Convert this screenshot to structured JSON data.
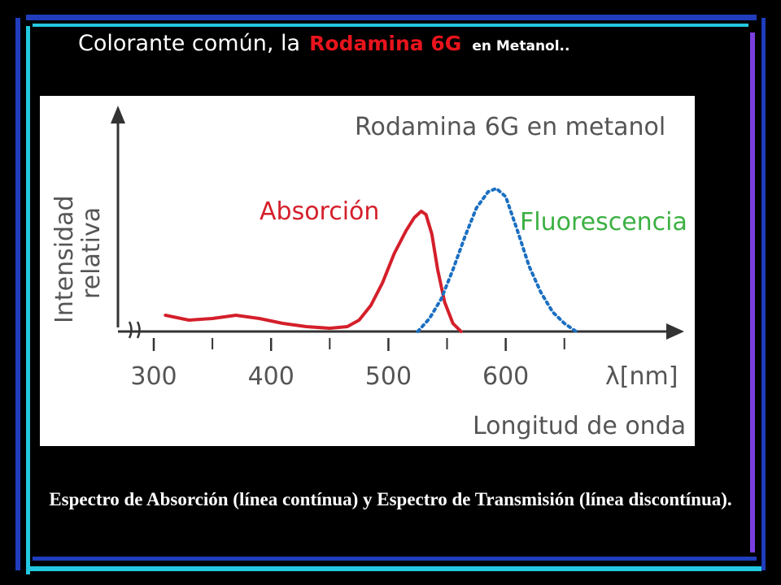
{
  "slide": {
    "title_part1": "Colorante común, la",
    "title_part2": "Rodamina 6G",
    "title_part3": "en Metanol..",
    "caption": "Espectro de Absorción (línea contínua) y Espectro de Transmisión  (línea discontínua).",
    "colors": {
      "background": "#000000",
      "title_accent": "#e8141c",
      "frame_blue": "#1f3dbd",
      "frame_purple": "#7a3ee0",
      "frame_cyan": "#22c8e0"
    }
  },
  "chart_data": {
    "type": "line",
    "title": "Rodamina 6G en metanol",
    "xlabel": "Longitud de onda",
    "xunit": "λ[nm]",
    "ylabel": [
      "Intensidad",
      "relativa"
    ],
    "xlim": [
      300,
      680
    ],
    "ylim": [
      0,
      1.0
    ],
    "xticks": [
      300,
      400,
      500,
      600
    ],
    "xtick_labels": [
      "300",
      "400",
      "500",
      "600"
    ],
    "grid": false,
    "series": [
      {
        "name": "Absorción",
        "color": "#d41f2a",
        "style": "solid",
        "x": [
          310,
          330,
          350,
          370,
          390,
          410,
          430,
          450,
          465,
          475,
          485,
          495,
          505,
          515,
          522,
          528,
          532,
          537,
          542,
          548,
          555,
          562
        ],
        "y": [
          0.1,
          0.07,
          0.08,
          0.1,
          0.08,
          0.05,
          0.03,
          0.02,
          0.03,
          0.07,
          0.16,
          0.3,
          0.48,
          0.62,
          0.7,
          0.74,
          0.72,
          0.6,
          0.38,
          0.18,
          0.05,
          0.0
        ]
      },
      {
        "name": "Fluorescencia",
        "color": "#1b6fc1",
        "style": "dotted",
        "x": [
          525,
          535,
          545,
          555,
          565,
          575,
          585,
          592,
          600,
          610,
          620,
          630,
          640,
          650,
          660
        ],
        "y": [
          0.0,
          0.08,
          0.2,
          0.38,
          0.58,
          0.76,
          0.86,
          0.88,
          0.83,
          0.62,
          0.4,
          0.24,
          0.12,
          0.05,
          0.0
        ]
      }
    ]
  }
}
